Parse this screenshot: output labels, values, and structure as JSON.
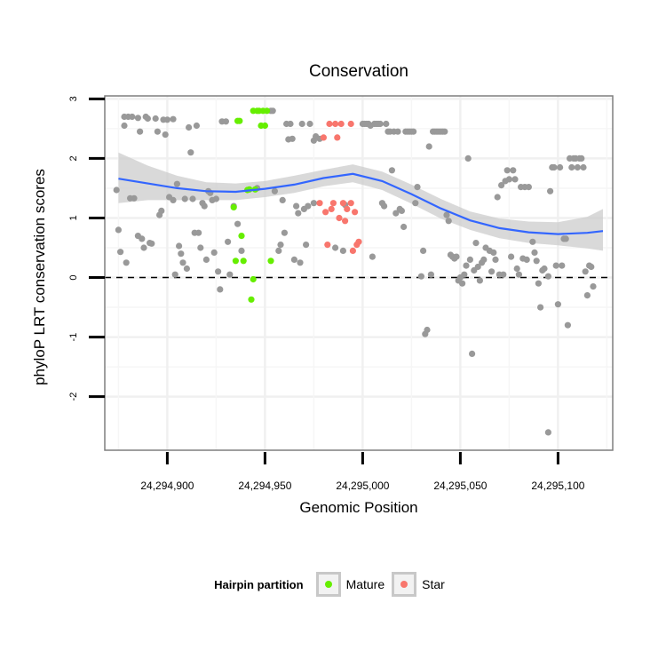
{
  "chart_data": {
    "type": "scatter",
    "title": "Conservation",
    "xlabel": "Genomic Position",
    "ylabel": "phyloP LRT conservation scores",
    "xlim": [
      24294868,
      24295128
    ],
    "ylim": [
      -2.9,
      3.05
    ],
    "x_ticks": [
      24294900,
      24294950,
      24295000,
      24295050,
      24295100
    ],
    "x_tick_labels": [
      "24,294,900",
      "24,294,950",
      "24,295,000",
      "24,295,050",
      "24,295,100"
    ],
    "y_ticks": [
      -2,
      -1,
      0,
      1,
      2,
      3
    ],
    "y_tick_labels": [
      "-2",
      "-1",
      "0",
      "1",
      "2",
      "3"
    ],
    "reference_line": {
      "y": 0,
      "style": "dashed"
    },
    "grid": true,
    "legend": {
      "title": "Hairpin partition",
      "position": "bottom",
      "entries": [
        {
          "label": "Mature",
          "color": "#66ee00"
        },
        {
          "label": "Star",
          "color": "#f8766d"
        }
      ]
    },
    "colors": {
      "other": "#999999",
      "Mature": "#66ee00",
      "Star": "#f8766d",
      "smooth": "#3366ff",
      "ribbon": "#cccccc"
    },
    "smooth": {
      "x": [
        24294875,
        24294890,
        24294905,
        24294920,
        24294935,
        24294950,
        24294965,
        24294980,
        24294995,
        24295010,
        24295025,
        24295040,
        24295055,
        24295070,
        24295085,
        24295100,
        24295115,
        24295123
      ],
      "y": [
        1.66,
        1.58,
        1.5,
        1.45,
        1.44,
        1.49,
        1.56,
        1.67,
        1.74,
        1.62,
        1.4,
        1.16,
        0.96,
        0.83,
        0.76,
        0.73,
        0.75,
        0.78
      ],
      "ymin": [
        1.25,
        1.3,
        1.3,
        1.3,
        1.3,
        1.35,
        1.42,
        1.53,
        1.6,
        1.47,
        1.24,
        0.99,
        0.8,
        0.66,
        0.58,
        0.54,
        0.49,
        0.45
      ],
      "ymax": [
        2.1,
        1.88,
        1.71,
        1.6,
        1.58,
        1.62,
        1.71,
        1.81,
        1.9,
        1.78,
        1.56,
        1.32,
        1.11,
        0.99,
        0.94,
        0.93,
        1.02,
        1.15
      ]
    },
    "series": [
      {
        "name": "Other",
        "points": [
          [
            24294874,
            1.47
          ],
          [
            24294875,
            0.8
          ],
          [
            24294876,
            0.43
          ],
          [
            24294878,
            2.55
          ],
          [
            24294878,
            2.7
          ],
          [
            24294879,
            0.25
          ],
          [
            24294880,
            2.7
          ],
          [
            24294881,
            1.33
          ],
          [
            24294882,
            2.7
          ],
          [
            24294883,
            1.33
          ],
          [
            24294885,
            2.68
          ],
          [
            24294885,
            0.7
          ],
          [
            24294886,
            2.45
          ],
          [
            24294887,
            0.65
          ],
          [
            24294888,
            0.5
          ],
          [
            24294889,
            2.7
          ],
          [
            24294890,
            2.67
          ],
          [
            24294891,
            0.58
          ],
          [
            24294892,
            0.57
          ],
          [
            24294894,
            2.67
          ],
          [
            24294895,
            2.45
          ],
          [
            24294896,
            1.05
          ],
          [
            24294897,
            1.12
          ],
          [
            24294898,
            2.65
          ],
          [
            24294899,
            2.4
          ],
          [
            24294900,
            2.65
          ],
          [
            24294901,
            1.35
          ],
          [
            24294903,
            2.66
          ],
          [
            24294903,
            1.3
          ],
          [
            24294904,
            0.05
          ],
          [
            24294905,
            1.57
          ],
          [
            24294906,
            0.53
          ],
          [
            24294907,
            0.4
          ],
          [
            24294908,
            0.25
          ],
          [
            24294909,
            1.32
          ],
          [
            24294910,
            0.15
          ],
          [
            24294911,
            2.52
          ],
          [
            24294912,
            2.1
          ],
          [
            24294913,
            1.32
          ],
          [
            24294914,
            0.75
          ],
          [
            24294915,
            2.55
          ],
          [
            24294916,
            0.75
          ],
          [
            24294917,
            0.5
          ],
          [
            24294918,
            1.25
          ],
          [
            24294919,
            1.2
          ],
          [
            24294920,
            0.3
          ],
          [
            24294921,
            1.45
          ],
          [
            24294922,
            1.42
          ],
          [
            24294923,
            1.3
          ],
          [
            24294924,
            0.42
          ],
          [
            24294925,
            1.32
          ],
          [
            24294926,
            0.1
          ],
          [
            24294927,
            -0.2
          ],
          [
            24294928,
            2.62
          ],
          [
            24294930,
            2.62
          ],
          [
            24294931,
            0.6
          ],
          [
            24294932,
            0.05
          ],
          [
            24294934,
            1.2
          ],
          [
            24294936,
            0.9
          ],
          [
            24294938,
            0.45
          ],
          [
            24294946,
            1.5
          ],
          [
            24294953,
            2.8
          ],
          [
            24294954,
            2.8
          ],
          [
            24294955,
            1.45
          ],
          [
            24294957,
            0.45
          ],
          [
            24294958,
            0.55
          ],
          [
            24294959,
            1.3
          ],
          [
            24294960,
            0.75
          ],
          [
            24294961,
            2.58
          ],
          [
            24294962,
            2.32
          ],
          [
            24294963,
            2.58
          ],
          [
            24294964,
            2.33
          ],
          [
            24294965,
            0.3
          ],
          [
            24294966,
            1.2
          ],
          [
            24294967,
            1.08
          ],
          [
            24294968,
            0.25
          ],
          [
            24294969,
            2.58
          ],
          [
            24294970,
            1.15
          ],
          [
            24294971,
            0.55
          ],
          [
            24294972,
            1.2
          ],
          [
            24294973,
            2.58
          ],
          [
            24294975,
            2.3
          ],
          [
            24294975,
            1.25
          ],
          [
            24294976,
            2.37
          ],
          [
            24294978,
            2.33
          ],
          [
            24294986,
            0.5
          ],
          [
            24294990,
            0.45
          ],
          [
            24294991,
            1.22
          ],
          [
            24295000,
            2.58
          ],
          [
            24295001,
            2.58
          ],
          [
            24295002,
            2.58
          ],
          [
            24295003,
            2.58
          ],
          [
            24295004,
            2.55
          ],
          [
            24295005,
            0.35
          ],
          [
            24295006,
            2.58
          ],
          [
            24295007,
            2.58
          ],
          [
            24295008,
            2.58
          ],
          [
            24295009,
            2.58
          ],
          [
            24295010,
            1.25
          ],
          [
            24295011,
            1.2
          ],
          [
            24295012,
            2.58
          ],
          [
            24295013,
            2.45
          ],
          [
            24295014,
            2.45
          ],
          [
            24295015,
            1.8
          ],
          [
            24295016,
            2.45
          ],
          [
            24295017,
            1.08
          ],
          [
            24295018,
            2.45
          ],
          [
            24295019,
            1.15
          ],
          [
            24295020,
            1.12
          ],
          [
            24295021,
            0.85
          ],
          [
            24295022,
            2.45
          ],
          [
            24295023,
            2.45
          ],
          [
            24295024,
            2.45
          ],
          [
            24295025,
            2.45
          ],
          [
            24295026,
            2.45
          ],
          [
            24295027,
            1.25
          ],
          [
            24295028,
            1.52
          ],
          [
            24295030,
            0.02
          ],
          [
            24295031,
            0.45
          ],
          [
            24295032,
            -0.95
          ],
          [
            24295033,
            -0.88
          ],
          [
            24295034,
            2.2
          ],
          [
            24295035,
            0.05
          ],
          [
            24295036,
            2.45
          ],
          [
            24295037,
            2.45
          ],
          [
            24295038,
            2.45
          ],
          [
            24295039,
            2.45
          ],
          [
            24295040,
            2.45
          ],
          [
            24295041,
            2.45
          ],
          [
            24295042,
            2.45
          ],
          [
            24295043,
            1.05
          ],
          [
            24295044,
            0.95
          ],
          [
            24295045,
            0.38
          ],
          [
            24295046,
            0.35
          ],
          [
            24295047,
            0.32
          ],
          [
            24295048,
            0.35
          ],
          [
            24295049,
            -0.05
          ],
          [
            24295050,
            0.0
          ],
          [
            24295051,
            -0.1
          ],
          [
            24295052,
            0.05
          ],
          [
            24295053,
            0.2
          ],
          [
            24295054,
            2.0
          ],
          [
            24295055,
            0.3
          ],
          [
            24295056,
            -1.28
          ],
          [
            24295057,
            0.12
          ],
          [
            24295058,
            0.58
          ],
          [
            24295059,
            0.18
          ],
          [
            24295060,
            -0.05
          ],
          [
            24295061,
            0.25
          ],
          [
            24295062,
            0.3
          ],
          [
            24295063,
            0.5
          ],
          [
            24295065,
            0.45
          ],
          [
            24295066,
            0.1
          ],
          [
            24295067,
            0.42
          ],
          [
            24295068,
            0.3
          ],
          [
            24295069,
            1.35
          ],
          [
            24295070,
            0.05
          ],
          [
            24295071,
            1.55
          ],
          [
            24295072,
            0.05
          ],
          [
            24295073,
            1.62
          ],
          [
            24295074,
            1.8
          ],
          [
            24295075,
            1.65
          ],
          [
            24295076,
            0.35
          ],
          [
            24295077,
            1.8
          ],
          [
            24295078,
            1.65
          ],
          [
            24295079,
            0.15
          ],
          [
            24295080,
            0.05
          ],
          [
            24295081,
            1.52
          ],
          [
            24295082,
            0.32
          ],
          [
            24295083,
            1.52
          ],
          [
            24295084,
            0.3
          ],
          [
            24295085,
            1.52
          ],
          [
            24295087,
            0.6
          ],
          [
            24295088,
            0.42
          ],
          [
            24295089,
            0.28
          ],
          [
            24295090,
            -0.1
          ],
          [
            24295091,
            -0.5
          ],
          [
            24295092,
            0.12
          ],
          [
            24295093,
            0.15
          ],
          [
            24295095,
            0.02
          ],
          [
            24295096,
            1.45
          ],
          [
            24295097,
            1.85
          ],
          [
            24295098,
            1.85
          ],
          [
            24295099,
            0.2
          ],
          [
            24295100,
            -0.45
          ],
          [
            24295101,
            1.85
          ],
          [
            24295102,
            0.2
          ],
          [
            24295103,
            0.65
          ],
          [
            24295104,
            0.65
          ],
          [
            24295105,
            -0.8
          ],
          [
            24295106,
            2.0
          ],
          [
            24295107,
            1.85
          ],
          [
            24295108,
            2.0
          ],
          [
            24295109,
            2.0
          ],
          [
            24295110,
            1.85
          ],
          [
            24295111,
            2.0
          ],
          [
            24295112,
            2.0
          ],
          [
            24295113,
            1.85
          ],
          [
            24295114,
            0.1
          ],
          [
            24295115,
            -0.3
          ],
          [
            24295116,
            0.2
          ],
          [
            24295117,
            0.18
          ],
          [
            24295118,
            -0.15
          ],
          [
            24295095,
            -2.6
          ]
        ]
      },
      {
        "name": "Mature",
        "points": [
          [
            24294934,
            1.18
          ],
          [
            24294935,
            0.28
          ],
          [
            24294936,
            2.63
          ],
          [
            24294937,
            2.63
          ],
          [
            24294938,
            0.7
          ],
          [
            24294939,
            0.28
          ],
          [
            24294941,
            1.47
          ],
          [
            24294942,
            1.48
          ],
          [
            24294943,
            -0.37
          ],
          [
            24294944,
            -0.03
          ],
          [
            24294944,
            2.8
          ],
          [
            24294945,
            1.48
          ],
          [
            24294946,
            2.8
          ],
          [
            24294947,
            2.8
          ],
          [
            24294948,
            2.55
          ],
          [
            24294949,
            2.8
          ],
          [
            24294950,
            2.55
          ],
          [
            24294951,
            2.8
          ],
          [
            24294953,
            0.28
          ]
        ]
      },
      {
        "name": "Star",
        "points": [
          [
            24294978,
            1.25
          ],
          [
            24294980,
            2.35
          ],
          [
            24294981,
            1.1
          ],
          [
            24294982,
            0.55
          ],
          [
            24294983,
            2.58
          ],
          [
            24294984,
            1.15
          ],
          [
            24294985,
            1.25
          ],
          [
            24294986,
            2.58
          ],
          [
            24294987,
            2.35
          ],
          [
            24294988,
            1.0
          ],
          [
            24294989,
            2.58
          ],
          [
            24294990,
            1.25
          ],
          [
            24294991,
            0.95
          ],
          [
            24294992,
            1.15
          ],
          [
            24294994,
            2.58
          ],
          [
            24294994,
            1.25
          ],
          [
            24294995,
            0.45
          ],
          [
            24294996,
            1.1
          ],
          [
            24294997,
            0.55
          ],
          [
            24294998,
            0.6
          ]
        ]
      }
    ]
  }
}
